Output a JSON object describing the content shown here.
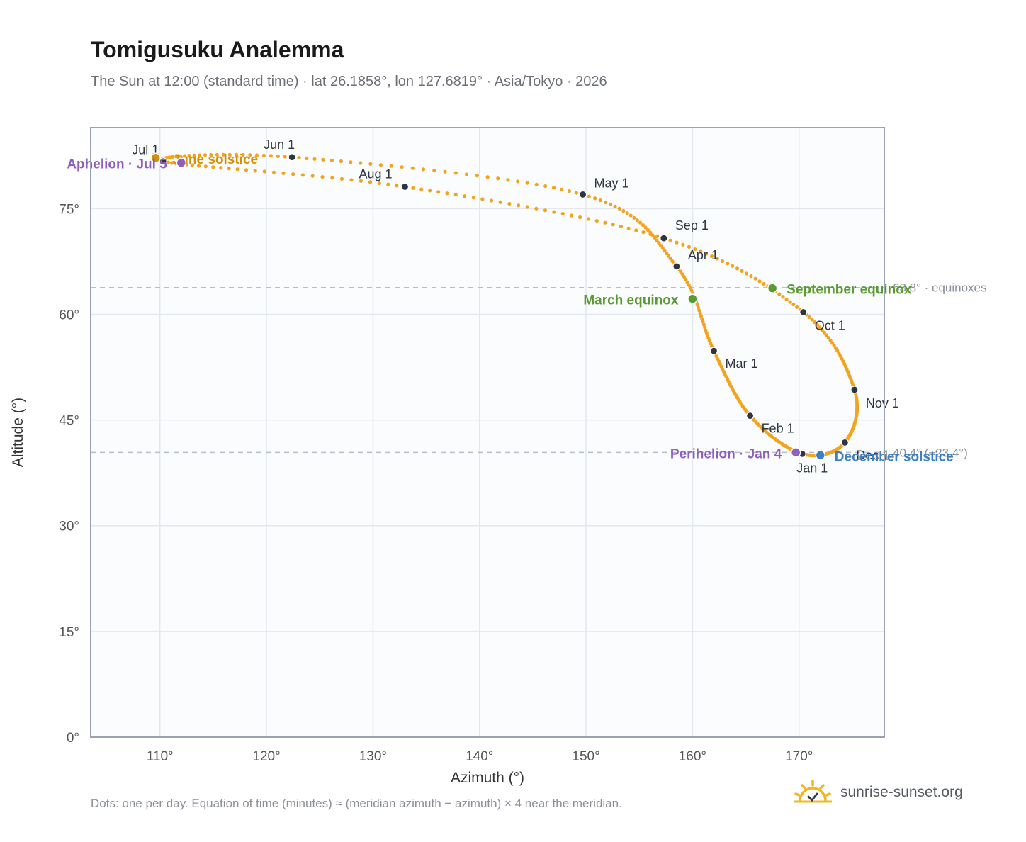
{
  "header": {
    "title": "Tomigusuku Analemma",
    "subtitle": "The Sun at 12:00 (standard time) · lat 26.1858°, lon 127.6819° · Asia/Tokyo · 2026"
  },
  "footer": {
    "note": "Dots: one per day. Equation of time (minutes) ≈ (meridian azimuth − azimuth) × 4 near the meridian.",
    "brand": "sunrise-sunset.org"
  },
  "colors": {
    "curve": "#f2a41f",
    "month_dot": "#2f3540",
    "equinox": "#5a9a32",
    "solstice_june": "#d4900a",
    "solstice_december": "#3d7fc4",
    "apsis": "#8f5fbf",
    "grid": "#e3e7ee",
    "plot_bg": "#fafcfe",
    "frame": "#9aa3b2",
    "ref_line": "#b8bec8"
  },
  "chart_data": {
    "type": "scatter",
    "xlabel": "Azimuth (°)",
    "ylabel": "Altitude (°)",
    "xlim": [
      103.5,
      178
    ],
    "ylim": [
      0,
      86.5
    ],
    "xticks": [
      110,
      120,
      130,
      140,
      150,
      160,
      170
    ],
    "xtick_labels": [
      "110°",
      "120°",
      "130°",
      "140°",
      "150°",
      "160°",
      "170°"
    ],
    "yticks": [
      0,
      15,
      30,
      45,
      60,
      75
    ],
    "ytick_labels": [
      "0°",
      "15°",
      "30°",
      "45°",
      "60°",
      "75°"
    ],
    "grid": true,
    "months": [
      {
        "label": "Jan 1",
        "az": 170.3,
        "alt": 40.2
      },
      {
        "label": "Feb 1",
        "az": 165.4,
        "alt": 45.6
      },
      {
        "label": "Mar 1",
        "az": 162.0,
        "alt": 54.8
      },
      {
        "label": "Apr 1",
        "az": 158.5,
        "alt": 66.8
      },
      {
        "label": "May 1",
        "az": 149.7,
        "alt": 77.0
      },
      {
        "label": "Jun 1",
        "az": 122.4,
        "alt": 82.3
      },
      {
        "label": "Jul 1",
        "az": 110.3,
        "alt": 81.7
      },
      {
        "label": "Aug 1",
        "az": 133.0,
        "alt": 78.1
      },
      {
        "label": "Sep 1",
        "az": 157.3,
        "alt": 70.8
      },
      {
        "label": "Oct 1",
        "az": 170.4,
        "alt": 60.3
      },
      {
        "label": "Nov 1",
        "az": 175.2,
        "alt": 49.3
      },
      {
        "label": "Dec 1",
        "az": 174.3,
        "alt": 41.8
      }
    ],
    "events": [
      {
        "label": "March equinox",
        "az": 160.0,
        "alt": 62.2,
        "kind": "equinox"
      },
      {
        "label": "September equinox",
        "az": 167.5,
        "alt": 63.7,
        "kind": "equinox"
      },
      {
        "label": "June solstice",
        "az": 109.6,
        "alt": 82.2,
        "kind": "solstice_june"
      },
      {
        "label": "December solstice",
        "az": 172.0,
        "alt": 40.0,
        "kind": "solstice_december"
      },
      {
        "label": "Perihelion · Jan 4",
        "az": 169.7,
        "alt": 40.4,
        "kind": "apsis"
      },
      {
        "label": "Aphelion · Jul 5",
        "az": 112.0,
        "alt": 81.5,
        "kind": "apsis"
      }
    ],
    "reference_lines": [
      {
        "alt": 63.8,
        "label": "63.8° · equinoxes"
      },
      {
        "alt": 40.4,
        "label": "40.4° (−23.4°)"
      }
    ]
  }
}
